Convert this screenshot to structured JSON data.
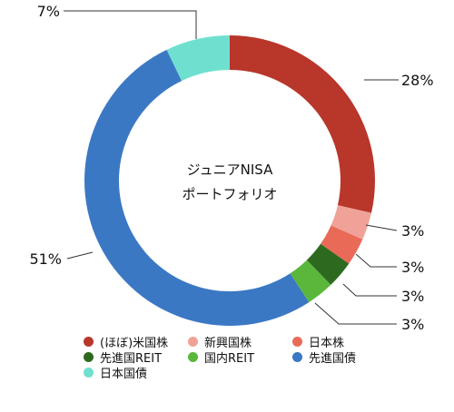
{
  "chart_data": {
    "type": "pie",
    "center_title": [
      "ジュニアNISA",
      "ポートフォリオ"
    ],
    "slices": [
      {
        "name": "(ほぼ)米国株",
        "value": 28,
        "label": "28%",
        "color": "#b8362a"
      },
      {
        "name": "新興国株",
        "value": 3,
        "label": "3%",
        "color": "#f0a298"
      },
      {
        "name": "日本株",
        "value": 3,
        "label": "3%",
        "color": "#ea6a58"
      },
      {
        "name": "先進国REIT",
        "value": 3,
        "label": "3%",
        "color": "#2d6a1f"
      },
      {
        "name": "国内REIT",
        "value": 3,
        "label": "3%",
        "color": "#5ab73c"
      },
      {
        "name": "先進国債",
        "value": 51,
        "label": "51%",
        "color": "#3b78c4"
      },
      {
        "name": "日本国債",
        "value": 7,
        "label": "7%",
        "color": "#6fe0cf"
      }
    ],
    "legend_position": "bottom"
  }
}
